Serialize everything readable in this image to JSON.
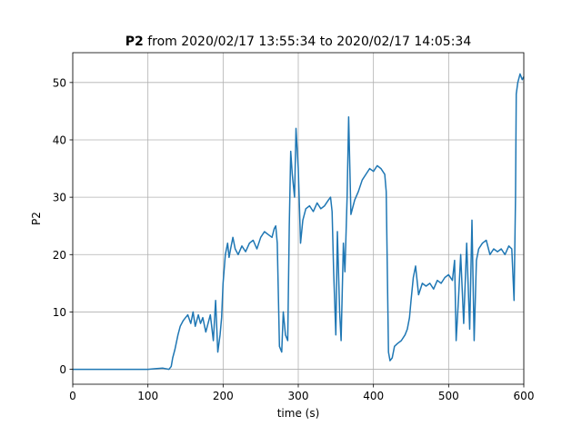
{
  "chart_data": {
    "type": "line",
    "title_bold": "P2",
    "title_rest": " from 2020/02/17 13:55:34 to 2020/02/17 14:05:34",
    "xlabel": "time (s)",
    "ylabel": "P2",
    "xlim": [
      0,
      600
    ],
    "ylim": [
      -2.6,
      55.2
    ],
    "xticks": [
      0,
      100,
      200,
      300,
      400,
      500,
      600
    ],
    "yticks": [
      0,
      10,
      20,
      30,
      40,
      50
    ],
    "grid": true,
    "series": [
      {
        "color": "#1f77b4",
        "x": [
          0,
          20,
          40,
          60,
          80,
          100,
          110,
          120,
          128,
          131,
          133,
          136,
          140,
          143,
          147,
          150,
          153,
          157,
          160,
          163,
          167,
          170,
          173,
          177,
          180,
          183,
          187,
          190,
          193,
          196,
          198,
          200,
          203,
          206,
          208,
          210,
          213,
          216,
          220,
          225,
          230,
          235,
          240,
          245,
          250,
          255,
          260,
          265,
          268,
          270,
          272,
          275,
          278,
          280,
          283,
          286,
          288,
          290,
          292,
          295,
          297,
          300,
          303,
          306,
          310,
          315,
          320,
          325,
          330,
          335,
          340,
          343,
          345,
          347,
          350,
          352,
          355,
          357,
          360,
          362,
          365,
          367,
          370,
          375,
          380,
          385,
          390,
          395,
          400,
          405,
          410,
          415,
          417,
          420,
          422,
          425,
          428,
          432,
          437,
          442,
          445,
          448,
          450,
          453,
          456,
          460,
          465,
          470,
          475,
          480,
          485,
          490,
          495,
          500,
          505,
          508,
          510,
          513,
          516,
          520,
          524,
          528,
          531,
          534,
          537,
          540,
          545,
          550,
          555,
          560,
          565,
          570,
          575,
          580,
          584,
          587,
          589,
          590,
          592,
          595,
          598,
          600
        ],
        "y": [
          0,
          0,
          0,
          0,
          0,
          0,
          0.1,
          0.2,
          0,
          0.5,
          2.0,
          3.5,
          6.0,
          7.5,
          8.5,
          9.0,
          9.5,
          8.0,
          10.0,
          7.5,
          9.5,
          8.0,
          9.0,
          6.5,
          8.0,
          9.5,
          5.0,
          12.0,
          3.0,
          6.0,
          9.0,
          15.0,
          20.0,
          22.0,
          19.5,
          21.0,
          23.0,
          21.0,
          20.0,
          21.5,
          20.5,
          22.0,
          22.5,
          21.0,
          23.0,
          24.0,
          23.5,
          23.0,
          24.5,
          25.0,
          22.0,
          4.0,
          3.0,
          10.0,
          6.0,
          5.0,
          25.0,
          38.0,
          34.0,
          30.0,
          42.0,
          35.0,
          22.0,
          26.0,
          28.0,
          28.5,
          27.5,
          29.0,
          28.0,
          28.5,
          29.5,
          30.0,
          27.5,
          17.0,
          6.0,
          24.0,
          10.0,
          5.0,
          22.0,
          17.0,
          30.0,
          44.0,
          27.0,
          29.5,
          31.0,
          33.0,
          34.0,
          35.0,
          34.5,
          35.5,
          35.0,
          34.0,
          31.0,
          3.0,
          1.5,
          2.0,
          4.0,
          4.5,
          5.0,
          6.0,
          7.0,
          9.0,
          12.0,
          16.0,
          18.0,
          13.0,
          15.0,
          14.5,
          15.0,
          14.0,
          15.5,
          15.0,
          16.0,
          16.5,
          15.5,
          19.0,
          5.0,
          12.0,
          20.0,
          8.0,
          22.0,
          7.0,
          26.0,
          5.0,
          19.0,
          21.0,
          22.0,
          22.5,
          20.0,
          21.0,
          20.5,
          21.0,
          20.0,
          21.5,
          21.0,
          12.0,
          30.0,
          48.0,
          50.0,
          51.5,
          50.5,
          51.0
        ]
      }
    ]
  }
}
